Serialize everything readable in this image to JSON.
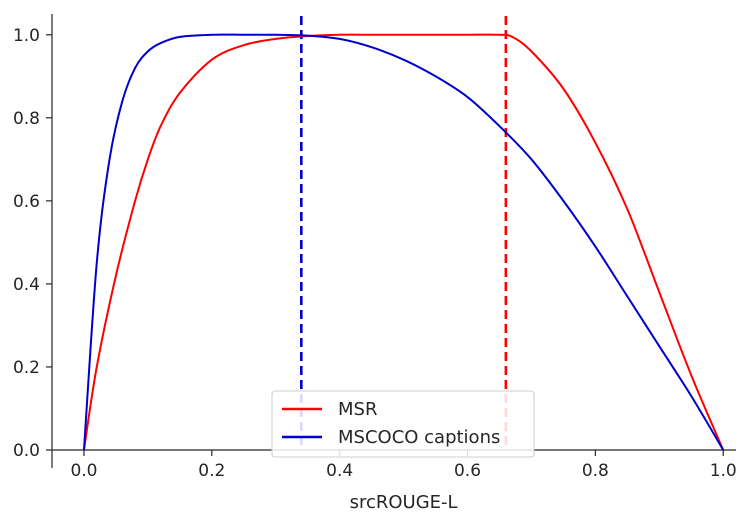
{
  "chart_data": {
    "type": "line",
    "title": "",
    "xlabel": "srcROUGE-L",
    "ylabel": "",
    "xlim": [
      -0.05,
      1.02
    ],
    "ylim": [
      0.0,
      1.05
    ],
    "xticks": [
      0.0,
      0.2,
      0.4,
      0.6,
      0.8,
      1.0
    ],
    "xtick_labels": [
      "0.0",
      "0.2",
      "0.4",
      "0.6",
      "0.8",
      "1.0"
    ],
    "yticks": [
      0.0,
      0.2,
      0.4,
      0.6,
      0.8,
      1.0
    ],
    "ytick_labels": [
      "0.0",
      "0.2",
      "0.4",
      "0.6",
      "0.8",
      "1.0"
    ],
    "grid": false,
    "legend_position": "bottom-center",
    "series": [
      {
        "name": "MSR",
        "color": "#ff0000",
        "x": [
          0.0,
          0.02,
          0.05,
          0.08,
          0.1,
          0.12,
          0.15,
          0.2,
          0.25,
          0.3,
          0.35,
          0.4,
          0.45,
          0.5,
          0.55,
          0.6,
          0.65,
          0.67,
          0.7,
          0.75,
          0.8,
          0.85,
          0.9,
          0.95,
          1.0
        ],
        "y": [
          0.0,
          0.2,
          0.42,
          0.6,
          0.7,
          0.78,
          0.86,
          0.94,
          0.975,
          0.99,
          0.997,
          1.0,
          1.0,
          1.0,
          1.0,
          1.0,
          1.0,
          0.995,
          0.96,
          0.87,
          0.74,
          0.58,
          0.38,
          0.18,
          0.0
        ]
      },
      {
        "name": "MSCOCO captions",
        "color": "#0000cc",
        "x": [
          0.0,
          0.02,
          0.04,
          0.06,
          0.08,
          0.1,
          0.12,
          0.15,
          0.2,
          0.25,
          0.3,
          0.35,
          0.4,
          0.45,
          0.5,
          0.55,
          0.6,
          0.65,
          0.7,
          0.75,
          0.8,
          0.85,
          0.9,
          0.95,
          1.0
        ],
        "y": [
          0.0,
          0.45,
          0.7,
          0.84,
          0.92,
          0.96,
          0.98,
          0.995,
          1.0,
          1.0,
          1.0,
          0.998,
          0.99,
          0.97,
          0.94,
          0.9,
          0.85,
          0.78,
          0.7,
          0.6,
          0.49,
          0.37,
          0.25,
          0.13,
          0.0
        ]
      }
    ],
    "vlines": [
      {
        "x": 0.34,
        "color": "#0000cc",
        "style": "dashed"
      },
      {
        "x": 0.66,
        "color": "#ff0000",
        "style": "dashed"
      }
    ]
  }
}
